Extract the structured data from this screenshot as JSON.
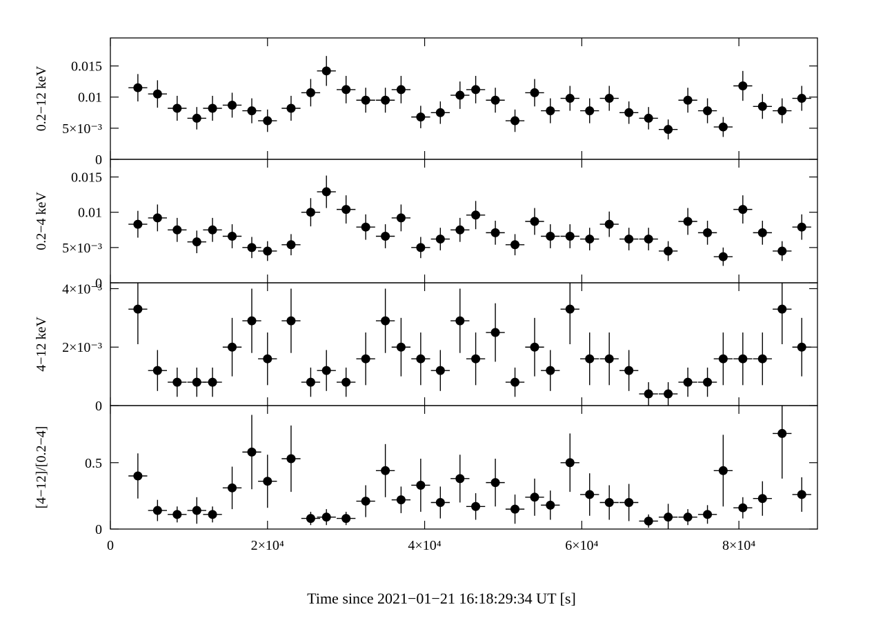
{
  "chart_data": {
    "type": "scatter",
    "x_title": "Time since 2021−01−21 16:18:29:34 UT [s]",
    "x_range": [
      0,
      90000
    ],
    "x_ticks": [
      0,
      20000,
      40000,
      60000,
      80000
    ],
    "x_tick_labels": [
      "0",
      "2×10⁴",
      "4×10⁴",
      "6×10⁴",
      "8×10⁴"
    ],
    "x_halfwidth": 1200,
    "x": [
      3500,
      6000,
      8500,
      11000,
      13000,
      15500,
      18000,
      20000,
      23000,
      25500,
      27500,
      30000,
      32500,
      35000,
      37000,
      39500,
      42000,
      44500,
      46500,
      49000,
      51500,
      54000,
      56000,
      58500,
      61000,
      63500,
      66000,
      68500,
      71000,
      73500,
      76000,
      78000,
      80500,
      83000,
      85500,
      88000
    ],
    "panels": [
      {
        "ylabel": "0.2−12 keV",
        "ylim": [
          0,
          0.0195
        ],
        "y_ticks": [
          0,
          0.005,
          0.01,
          0.015
        ],
        "y_tick_labels": [
          "0",
          "5×10⁻³",
          "0.01",
          "0.015"
        ],
        "values": [
          0.0115,
          0.0105,
          0.0082,
          0.0066,
          0.0082,
          0.0087,
          0.0078,
          0.0062,
          0.0082,
          0.0107,
          0.0142,
          0.0112,
          0.0095,
          0.0095,
          0.0112,
          0.0068,
          0.0075,
          0.0103,
          0.0112,
          0.0095,
          0.0062,
          0.0107,
          0.0078,
          0.0098,
          0.0078,
          0.0098,
          0.0075,
          0.0066,
          0.0048,
          0.0095,
          0.0078,
          0.0052,
          0.0118,
          0.0085,
          0.0078,
          0.0098
        ],
        "errors": [
          0.0022,
          0.0022,
          0.002,
          0.0018,
          0.002,
          0.002,
          0.002,
          0.0018,
          0.002,
          0.0022,
          0.0024,
          0.0022,
          0.002,
          0.002,
          0.0022,
          0.0018,
          0.0018,
          0.0022,
          0.0022,
          0.002,
          0.0018,
          0.0022,
          0.002,
          0.002,
          0.002,
          0.002,
          0.0018,
          0.0018,
          0.0016,
          0.002,
          0.002,
          0.0016,
          0.0024,
          0.002,
          0.002,
          0.002
        ]
      },
      {
        "ylabel": "0.2−4 keV",
        "ylim": [
          0,
          0.0175
        ],
        "y_ticks": [
          0,
          0.005,
          0.01,
          0.015
        ],
        "y_tick_labels": [
          "0",
          "5×10⁻³",
          "0.01",
          "0.015"
        ],
        "values": [
          0.0083,
          0.0092,
          0.0075,
          0.0058,
          0.0075,
          0.0066,
          0.005,
          0.0045,
          0.0054,
          0.01,
          0.0129,
          0.0104,
          0.0079,
          0.0066,
          0.0092,
          0.005,
          0.0062,
          0.0075,
          0.0096,
          0.0071,
          0.0054,
          0.0087,
          0.0066,
          0.0066,
          0.0062,
          0.0083,
          0.0062,
          0.0062,
          0.0045,
          0.0087,
          0.0071,
          0.0037,
          0.0104,
          0.0071,
          0.0045,
          0.0079
        ],
        "errors": [
          0.0019,
          0.0019,
          0.0017,
          0.0016,
          0.0017,
          0.0017,
          0.0015,
          0.0014,
          0.0015,
          0.002,
          0.0023,
          0.002,
          0.0018,
          0.0017,
          0.0019,
          0.0015,
          0.0016,
          0.0017,
          0.002,
          0.0017,
          0.0015,
          0.0019,
          0.0017,
          0.0017,
          0.0016,
          0.0018,
          0.0016,
          0.0016,
          0.0014,
          0.0019,
          0.0017,
          0.0013,
          0.002,
          0.0017,
          0.0014,
          0.0018
        ]
      },
      {
        "ylabel": "4−12 keV",
        "ylim": [
          0,
          0.0042
        ],
        "y_ticks": [
          0,
          0.002,
          0.004
        ],
        "y_tick_labels": [
          "0",
          "2×10⁻³",
          "4×10⁻³"
        ],
        "values": [
          0.0033,
          0.0012,
          0.0008,
          0.0008,
          0.0008,
          0.002,
          0.0029,
          0.0016,
          0.0029,
          0.0008,
          0.0012,
          0.0008,
          0.0016,
          0.0029,
          0.002,
          0.0016,
          0.0012,
          0.0029,
          0.0016,
          0.0025,
          0.0008,
          0.002,
          0.0012,
          0.0033,
          0.0016,
          0.0016,
          0.0012,
          0.0004,
          0.0004,
          0.0008,
          0.0008,
          0.0016,
          0.0016,
          0.0016,
          0.0033,
          0.002
        ],
        "errors": [
          0.0012,
          0.0007,
          0.0005,
          0.0005,
          0.0005,
          0.001,
          0.0011,
          0.0009,
          0.0011,
          0.0005,
          0.0007,
          0.0005,
          0.0009,
          0.0011,
          0.001,
          0.0009,
          0.0007,
          0.0011,
          0.0009,
          0.001,
          0.0005,
          0.001,
          0.0007,
          0.0012,
          0.0009,
          0.0009,
          0.0007,
          0.0004,
          0.0004,
          0.0005,
          0.0005,
          0.0009,
          0.0009,
          0.0009,
          0.0012,
          0.001
        ]
      },
      {
        "ylabel": "[4−12]/[0.2−4]",
        "ylim": [
          0,
          0.93
        ],
        "y_ticks": [
          0,
          0.5
        ],
        "y_tick_labels": [
          "0",
          "0.5"
        ],
        "values": [
          0.4,
          0.14,
          0.11,
          0.14,
          0.11,
          0.31,
          0.58,
          0.36,
          0.53,
          0.08,
          0.09,
          0.08,
          0.21,
          0.44,
          0.22,
          0.33,
          0.2,
          0.38,
          0.17,
          0.35,
          0.15,
          0.24,
          0.18,
          0.5,
          0.26,
          0.2,
          0.2,
          0.06,
          0.09,
          0.09,
          0.11,
          0.44,
          0.16,
          0.23,
          0.72,
          0.26
        ],
        "errors": [
          0.17,
          0.08,
          0.06,
          0.1,
          0.06,
          0.16,
          0.28,
          0.2,
          0.25,
          0.05,
          0.06,
          0.05,
          0.12,
          0.2,
          0.1,
          0.2,
          0.12,
          0.18,
          0.1,
          0.18,
          0.11,
          0.14,
          0.11,
          0.22,
          0.16,
          0.13,
          0.14,
          0.05,
          0.1,
          0.06,
          0.07,
          0.27,
          0.08,
          0.13,
          0.34,
          0.13
        ]
      }
    ]
  }
}
